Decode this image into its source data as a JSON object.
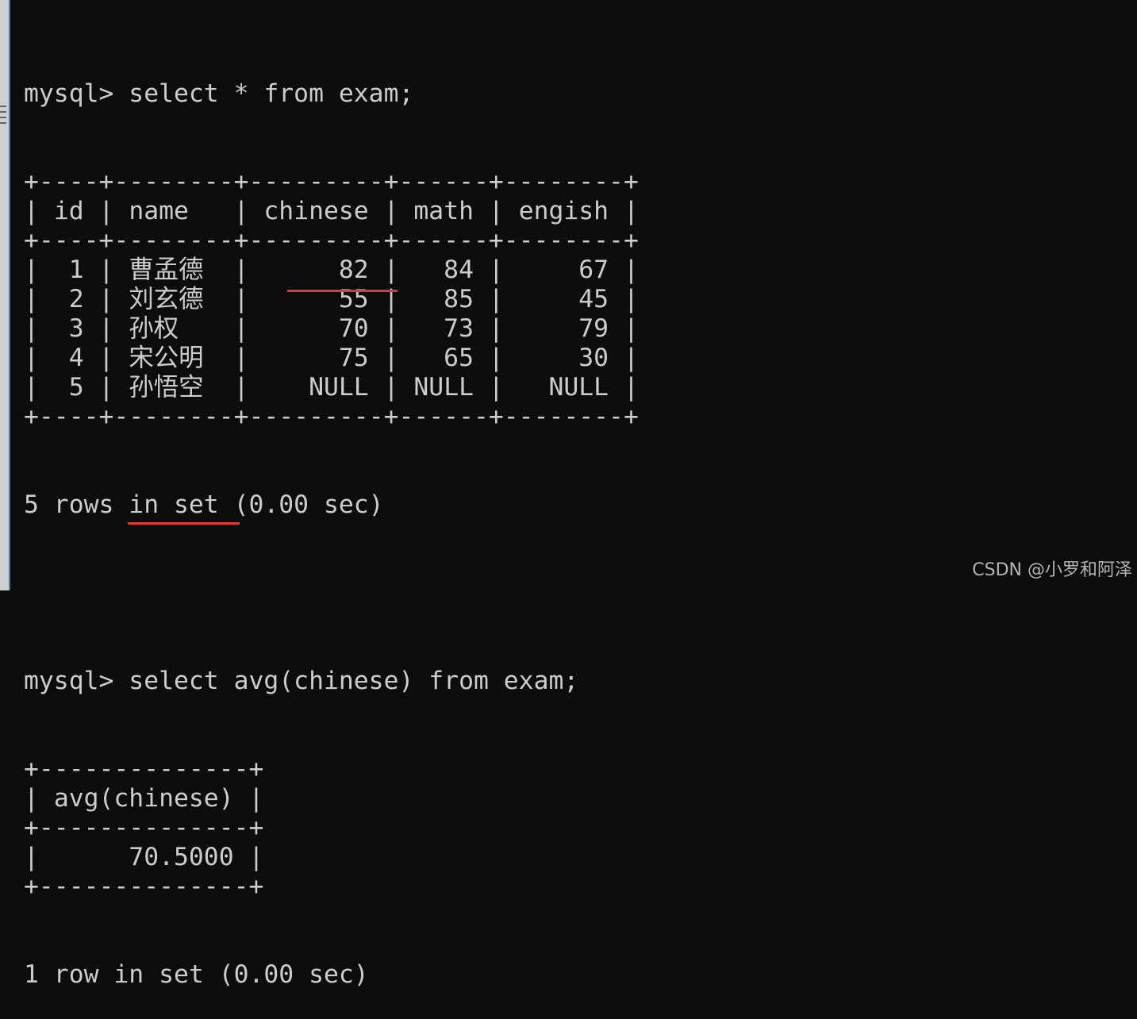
{
  "terminal": {
    "query1": {
      "prompt": "mysql> ",
      "command": "select * from exam;",
      "columns": [
        {
          "label": "id",
          "width": 2,
          "align": "right"
        },
        {
          "label": "name",
          "width": 6,
          "align": "left"
        },
        {
          "label": "chinese",
          "width": 7,
          "align": "right"
        },
        {
          "label": "math",
          "width": 4,
          "align": "right"
        },
        {
          "label": "engish",
          "width": 6,
          "align": "right"
        }
      ],
      "rows": [
        [
          "1",
          "曹孟德",
          "82",
          "84",
          "67"
        ],
        [
          "2",
          "刘玄德",
          "55",
          "85",
          "45"
        ],
        [
          "3",
          "孙权",
          "70",
          "73",
          "79"
        ],
        [
          "4",
          "宋公明",
          "75",
          "65",
          "30"
        ],
        [
          "5",
          "孙悟空",
          "NULL",
          "NULL",
          "NULL"
        ]
      ],
      "status": "5 rows in set (0.00 sec)"
    },
    "query2": {
      "prompt": "mysql> ",
      "command": "select avg(chinese) from exam;",
      "columns": [
        {
          "label": "avg(chinese)",
          "width": 12,
          "align": "left"
        }
      ],
      "rows": [
        [
          "70.5000"
        ]
      ],
      "value_align": "right",
      "status": "1 row in set (0.00 sec)"
    }
  },
  "annotations": {
    "underline_color": "#e8333a"
  },
  "watermark": "CSDN @小罗和阿泽"
}
